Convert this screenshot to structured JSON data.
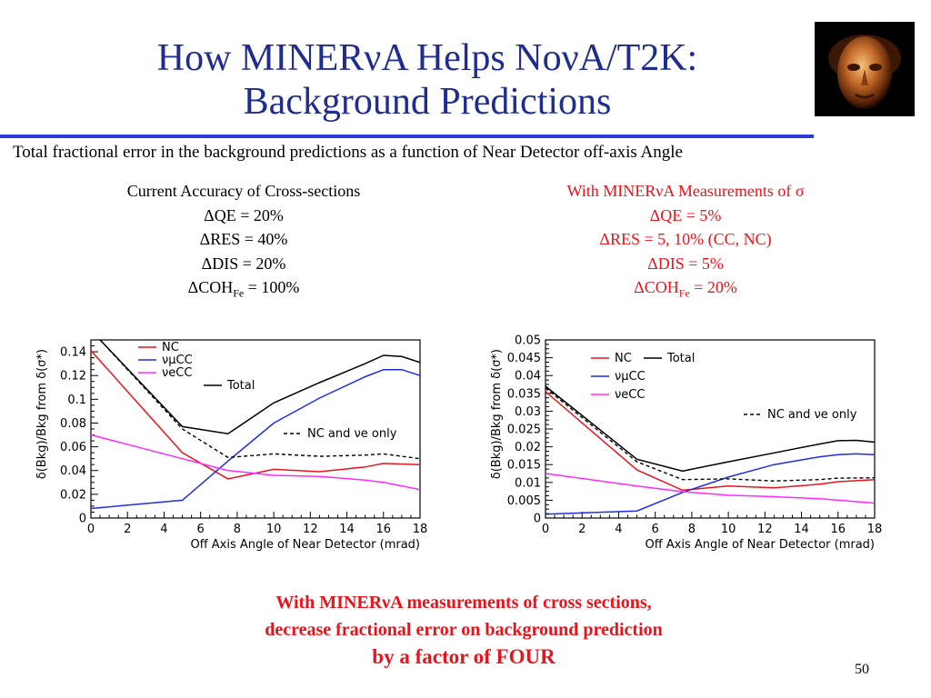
{
  "slide": {
    "title_line1": "How MINERνA Helps NoνA/T2K:",
    "title_line2": "Background Predictions",
    "subtitle": "Total fractional error in the background predictions as a function of Near Detector off-axis Angle",
    "page_number": "50",
    "accent_color": "#2b3bd6",
    "title_color": "#1f2d8f",
    "highlight_color": "#e8141b",
    "portrait_icon": "bronze-mask-portrait-icon"
  },
  "left_column": {
    "heading": "Current Accuracy of Cross-sections",
    "qe": "ΔQE = 20%",
    "res": "ΔRES = 40%",
    "dis": "ΔDIS = 20%",
    "coh_prefix": "ΔCOH",
    "coh_sub": "Fe",
    "coh_suffix": " = 100%"
  },
  "right_column": {
    "heading": "With MINERνA Measurements of σ",
    "qe": "ΔQE = 5%",
    "res": "ΔRES = 5, 10% (CC, NC)",
    "dis": "ΔDIS = 5%",
    "coh_prefix": "ΔCOH",
    "coh_sub": "Fe",
    "coh_suffix": " = 20%"
  },
  "conclusion": {
    "line1": "With MINERνA measurements of cross sections,",
    "line2": "decrease fractional error on background prediction",
    "line3": "by a factor of FOUR"
  },
  "chart_data": [
    {
      "type": "line",
      "xlabel": "Off Axis Angle of Near Detector (mrad)",
      "ylabel": "δ(Bkg)/Bkg from δ(σ*)",
      "xlim": [
        0,
        18
      ],
      "ylim": [
        0,
        0.15
      ],
      "xticks": [
        0,
        2,
        4,
        6,
        8,
        10,
        12,
        14,
        16,
        18
      ],
      "yticks": [
        0,
        0.02,
        0.04,
        0.06,
        0.08,
        0.1,
        0.12,
        0.14
      ],
      "ytick_labels": [
        "0",
        "0.02",
        "0.04",
        "0.06",
        "0.08",
        "0.1",
        "0.12",
        "0.14"
      ],
      "series": [
        {
          "name": "NC",
          "color": "#e8141b",
          "dash": false,
          "x": [
            0,
            5,
            7.5,
            10,
            12.5,
            15,
            16,
            18
          ],
          "y": [
            0.141,
            0.055,
            0.033,
            0.041,
            0.039,
            0.043,
            0.046,
            0.045
          ]
        },
        {
          "name": "νμCC",
          "color": "#1f2de0",
          "dash": false,
          "x": [
            0,
            5,
            7.5,
            10,
            12.5,
            15,
            16,
            17,
            18
          ],
          "y": [
            0.008,
            0.015,
            0.048,
            0.08,
            0.101,
            0.119,
            0.125,
            0.125,
            0.12
          ]
        },
        {
          "name": "νeCC",
          "color": "#ff2aff",
          "dash": false,
          "x": [
            0,
            5,
            7.5,
            10,
            12.5,
            15,
            16,
            18
          ],
          "y": [
            0.07,
            0.05,
            0.04,
            0.036,
            0.035,
            0.032,
            0.03,
            0.024
          ]
        },
        {
          "name": "Total",
          "color": "#000000",
          "dash": false,
          "x": [
            0.5,
            5,
            7.5,
            10,
            12.5,
            15,
            16,
            17,
            18
          ],
          "y": [
            0.15,
            0.077,
            0.071,
            0.097,
            0.114,
            0.13,
            0.137,
            0.136,
            0.131
          ]
        },
        {
          "name": "NC and νe only",
          "color": "#000000",
          "dash": true,
          "x": [
            0.5,
            5,
            7.5,
            10,
            12.5,
            15,
            16,
            18
          ],
          "y": [
            0.15,
            0.075,
            0.051,
            0.054,
            0.052,
            0.053,
            0.054,
            0.05
          ]
        }
      ]
    },
    {
      "type": "line",
      "xlabel": "Off Axis Angle of Near Detector (mrad)",
      "ylabel": "δ(Bkg)/Bkg from δ(σ*)",
      "xlim": [
        0,
        18
      ],
      "ylim": [
        0,
        0.05
      ],
      "xticks": [
        0,
        2,
        4,
        6,
        8,
        10,
        12,
        14,
        16,
        18
      ],
      "yticks": [
        0,
        0.005,
        0.01,
        0.015,
        0.02,
        0.025,
        0.03,
        0.035,
        0.04,
        0.045,
        0.05
      ],
      "ytick_labels": [
        "0",
        "0.005",
        "0.01",
        "0.015",
        "0.02",
        "0.025",
        "0.03",
        "0.035",
        "0.04",
        "0.045",
        "0.05"
      ],
      "series": [
        {
          "name": "NC",
          "color": "#e8141b",
          "dash": false,
          "x": [
            0,
            5,
            7.5,
            10,
            12.5,
            15,
            16,
            18
          ],
          "y": [
            0.0355,
            0.0135,
            0.0078,
            0.009,
            0.0085,
            0.0095,
            0.0102,
            0.0108
          ]
        },
        {
          "name": "νμCC",
          "color": "#1f2de0",
          "dash": false,
          "x": [
            0,
            5,
            7.5,
            10,
            12.5,
            15,
            16,
            17,
            18
          ],
          "y": [
            0.0011,
            0.002,
            0.0072,
            0.0115,
            0.015,
            0.0172,
            0.0178,
            0.018,
            0.0178
          ]
        },
        {
          "name": "νeCC",
          "color": "#ff2aff",
          "dash": false,
          "x": [
            0,
            5,
            7.5,
            10,
            12.5,
            15,
            16,
            18
          ],
          "y": [
            0.0125,
            0.009,
            0.0074,
            0.0064,
            0.006,
            0.0054,
            0.005,
            0.0042
          ]
        },
        {
          "name": "Total",
          "color": "#000000",
          "dash": false,
          "x": [
            0,
            5,
            7.5,
            10,
            12.5,
            15,
            16,
            17,
            18
          ],
          "y": [
            0.037,
            0.0165,
            0.0132,
            0.0158,
            0.0183,
            0.0208,
            0.0217,
            0.0218,
            0.0213
          ]
        },
        {
          "name": "NC and νe only",
          "color": "#000000",
          "dash": true,
          "x": [
            0,
            5,
            7.5,
            10,
            12.5,
            15,
            16,
            18
          ],
          "y": [
            0.0365,
            0.0158,
            0.0108,
            0.011,
            0.0104,
            0.0108,
            0.0112,
            0.0113
          ]
        }
      ]
    }
  ]
}
